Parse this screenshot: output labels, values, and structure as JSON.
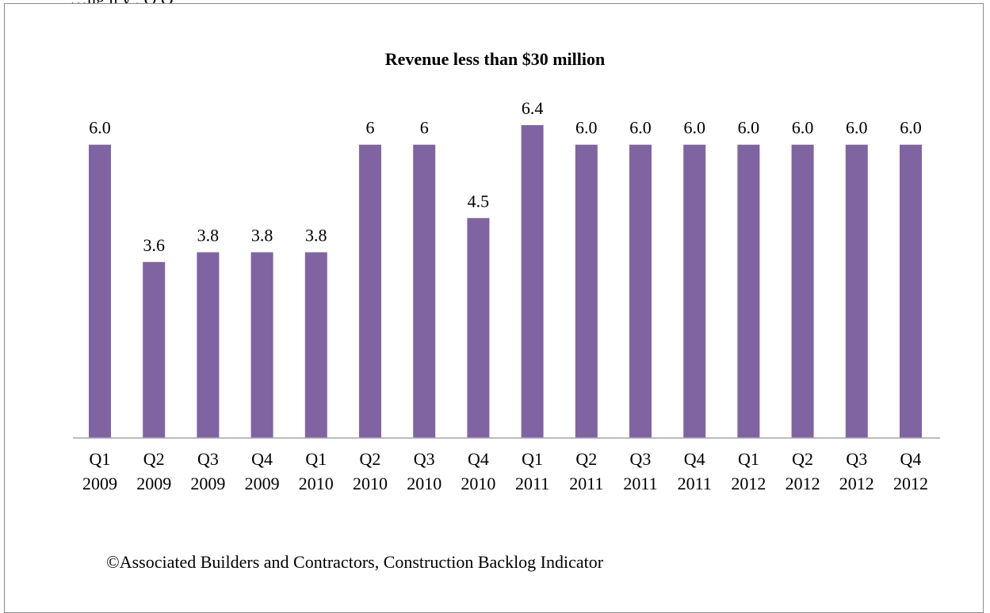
{
  "header": {
    "caption": "…ng      n     y              ,  Q               Q"
  },
  "source": "©Associated Builders and Contractors, Construction Backlog Indicator",
  "colors": {
    "bar": "#8064a2",
    "axis": "#a6a6a6",
    "frame": "#8c8c8c"
  },
  "chart_data": {
    "type": "bar",
    "title": "Revenue less than $30 million",
    "xlabel": "",
    "ylabel": "",
    "ylim": [
      0,
      7.34
    ],
    "grid": false,
    "categories": [
      [
        "Q1",
        "2009"
      ],
      [
        "Q2",
        "2009"
      ],
      [
        "Q3",
        "2009"
      ],
      [
        "Q4",
        "2009"
      ],
      [
        "Q1",
        "2010"
      ],
      [
        "Q2",
        "2010"
      ],
      [
        "Q3",
        "2010"
      ],
      [
        "Q4",
        "2010"
      ],
      [
        "Q1",
        "2011"
      ],
      [
        "Q2",
        "2011"
      ],
      [
        "Q3",
        "2011"
      ],
      [
        "Q4",
        "2011"
      ],
      [
        "Q1",
        "2012"
      ],
      [
        "Q2",
        "2012"
      ],
      [
        "Q3",
        "2012"
      ],
      [
        "Q4",
        "2012"
      ]
    ],
    "values": [
      6.0,
      3.6,
      3.8,
      3.8,
      3.8,
      6,
      6,
      4.5,
      6.4,
      6.0,
      6.0,
      6.0,
      6.0,
      6.0,
      6.0,
      6.0
    ],
    "data_labels": [
      "6.0",
      "3.6",
      "3.8",
      "3.8",
      "3.8",
      "6",
      "6",
      "4.5",
      "6.4",
      "6.0",
      "6.0",
      "6.0",
      "6.0",
      "6.0",
      "6.0",
      "6.0"
    ]
  }
}
